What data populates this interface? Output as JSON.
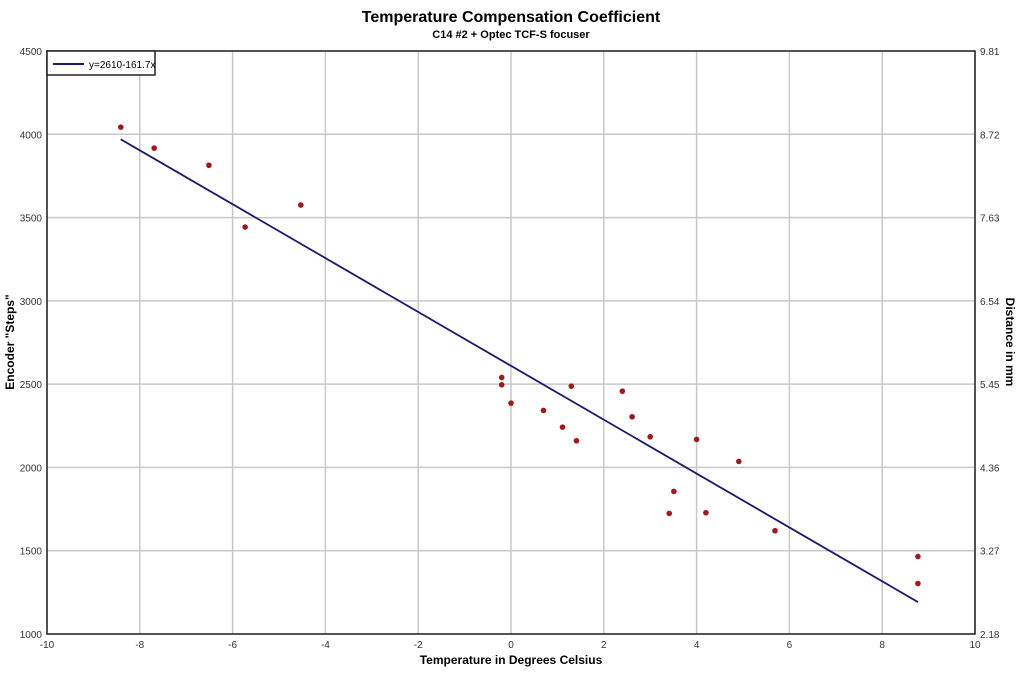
{
  "chart_data": {
    "type": "scatter",
    "title": "Temperature Compensation Coefficient",
    "subtitle": "C14 #2 + Optec TCF-S focuser",
    "xlabel": "Temperature in Degrees Celsius",
    "ylabel": "Encoder \"Steps\"",
    "y2label": "Distance in mm",
    "xlim": [
      -10,
      10
    ],
    "ylim": [
      1000,
      4500
    ],
    "y2lim": [
      2.18,
      9.81
    ],
    "xticks": [
      "-10",
      "-8",
      "-6",
      "-4",
      "-2",
      "0",
      "2",
      "4",
      "6",
      "8",
      "10"
    ],
    "yticks": [
      "1000",
      "1500",
      "2000",
      "2500",
      "3000",
      "3500",
      "4000",
      "4500"
    ],
    "y2ticks": [
      "2.18",
      "3.27",
      "4.36",
      "5.45",
      "6.54",
      "7.63",
      "8.72",
      "9.81"
    ],
    "grid": true,
    "legend_position": "top-left",
    "colors": {
      "points": "#a01818",
      "fit": "#1a1a6e",
      "grid": "#c8c8c8"
    },
    "points": [
      {
        "x": -8.41,
        "y": 4043
      },
      {
        "x": -7.69,
        "y": 3917
      },
      {
        "x": -6.51,
        "y": 3814
      },
      {
        "x": -5.73,
        "y": 3443
      },
      {
        "x": -4.53,
        "y": 3575
      },
      {
        "x": -0.2,
        "y": 2540
      },
      {
        "x": -0.2,
        "y": 2496
      },
      {
        "x": 0.0,
        "y": 2386
      },
      {
        "x": 0.7,
        "y": 2342
      },
      {
        "x": 1.11,
        "y": 2242
      },
      {
        "x": 1.3,
        "y": 2488
      },
      {
        "x": 1.41,
        "y": 2160
      },
      {
        "x": 2.4,
        "y": 2458
      },
      {
        "x": 2.61,
        "y": 2304
      },
      {
        "x": 3.0,
        "y": 2184
      },
      {
        "x": 3.41,
        "y": 1724
      },
      {
        "x": 3.51,
        "y": 1856
      },
      {
        "x": 4.0,
        "y": 2168
      },
      {
        "x": 4.2,
        "y": 1728
      },
      {
        "x": 4.91,
        "y": 2036
      },
      {
        "x": 5.69,
        "y": 1620
      },
      {
        "x": 8.77,
        "y": 1465
      },
      {
        "x": 8.77,
        "y": 1303
      }
    ],
    "fit": {
      "name": "y=2610-161.7x",
      "intercept": 2610,
      "slope": -161.7,
      "x_range": [
        -8.41,
        8.77
      ]
    }
  }
}
